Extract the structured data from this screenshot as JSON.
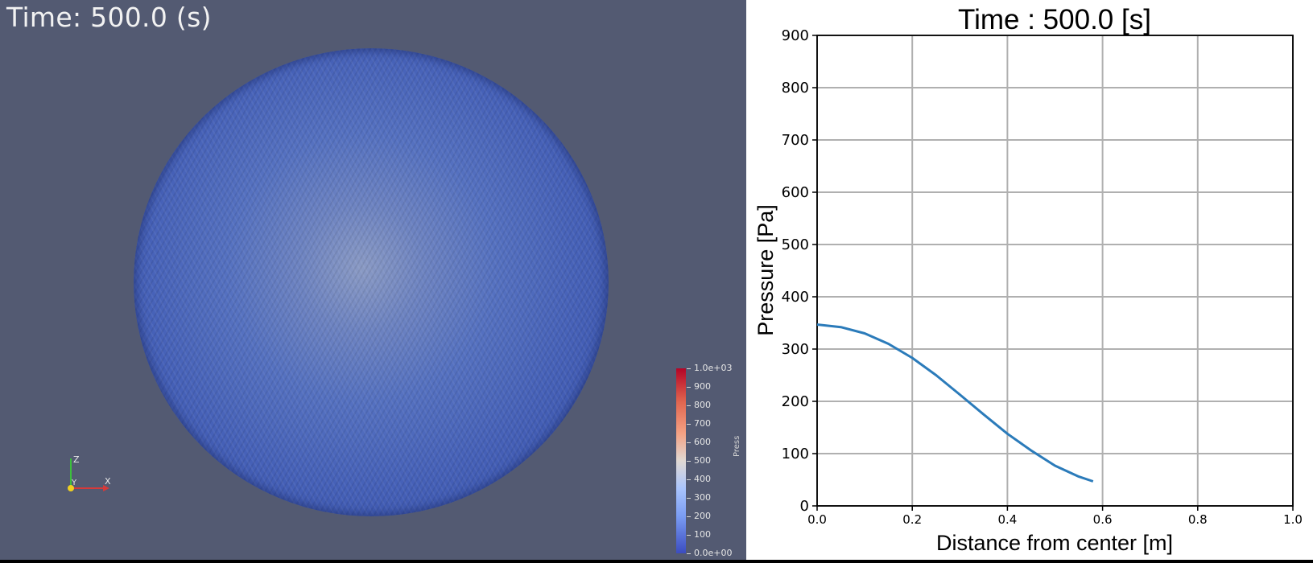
{
  "viewport": {
    "time_label": "Time: 500.0 (s)",
    "axes_labels": {
      "z": "Z",
      "y": "Y",
      "x": "X"
    },
    "sphere_color": "#4a66ba",
    "background_color": "#535a72"
  },
  "colorbar": {
    "title": "Press",
    "tick_labels": [
      "1.0e+03",
      "900",
      "800",
      "700",
      "600",
      "500",
      "400",
      "300",
      "200",
      "100",
      "0.0e+00"
    ],
    "colormap": "coolwarm"
  },
  "chart_data": {
    "type": "line",
    "title": "Time : 500.0 [s]",
    "xlabel": "Distance from center [m]",
    "ylabel": "Pressure [Pa]",
    "xlim": [
      0.0,
      1.0
    ],
    "ylim": [
      0,
      900
    ],
    "xticks": [
      "0.0",
      "0.2",
      "0.4",
      "0.6",
      "0.8",
      "1.0"
    ],
    "yticks": [
      "0",
      "100",
      "200",
      "300",
      "400",
      "500",
      "600",
      "700",
      "800",
      "900"
    ],
    "grid": true,
    "line_color": "#2b7bba",
    "series": [
      {
        "x": [
          0.0,
          0.05,
          0.1,
          0.15,
          0.2,
          0.25,
          0.3,
          0.35,
          0.4,
          0.45,
          0.5,
          0.55,
          0.58
        ],
        "y": [
          347,
          342,
          330,
          310,
          283,
          250,
          213,
          175,
          138,
          106,
          77,
          56,
          47
        ]
      }
    ]
  }
}
